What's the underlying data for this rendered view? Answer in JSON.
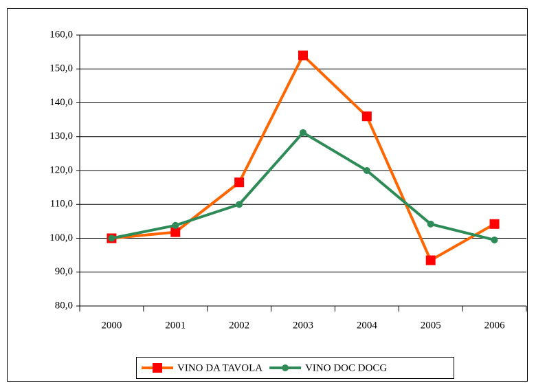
{
  "chart_data": {
    "type": "line",
    "categories": [
      "2000",
      "2001",
      "2002",
      "2003",
      "2004",
      "2005",
      "2006"
    ],
    "series": [
      {
        "name": "VINO DA TAVOLA",
        "color": "#ff6600",
        "marker": "square",
        "marker_color": "#ff0000",
        "values": [
          100,
          101.8,
          116.5,
          154,
          136,
          93.5,
          104.2
        ]
      },
      {
        "name": "VINO DOC DOCG",
        "color": "#2e8b57",
        "marker": "circle",
        "marker_color": "#2e8b57",
        "values": [
          100,
          103.8,
          110,
          131.2,
          120,
          104.2,
          99.5
        ]
      }
    ],
    "ylim": [
      80,
      160
    ],
    "yticks": [
      {
        "value": 80,
        "label": "80,0"
      },
      {
        "value": 90,
        "label": "90,0"
      },
      {
        "value": 100,
        "label": "100,0"
      },
      {
        "value": 110,
        "label": "110,0"
      },
      {
        "value": 120,
        "label": "120,0"
      },
      {
        "value": 130,
        "label": "130,0"
      },
      {
        "value": 140,
        "label": "140,0"
      },
      {
        "value": 150,
        "label": "150,0"
      },
      {
        "value": 160,
        "label": "160,0"
      }
    ],
    "grid": true,
    "legend": "bottom"
  }
}
